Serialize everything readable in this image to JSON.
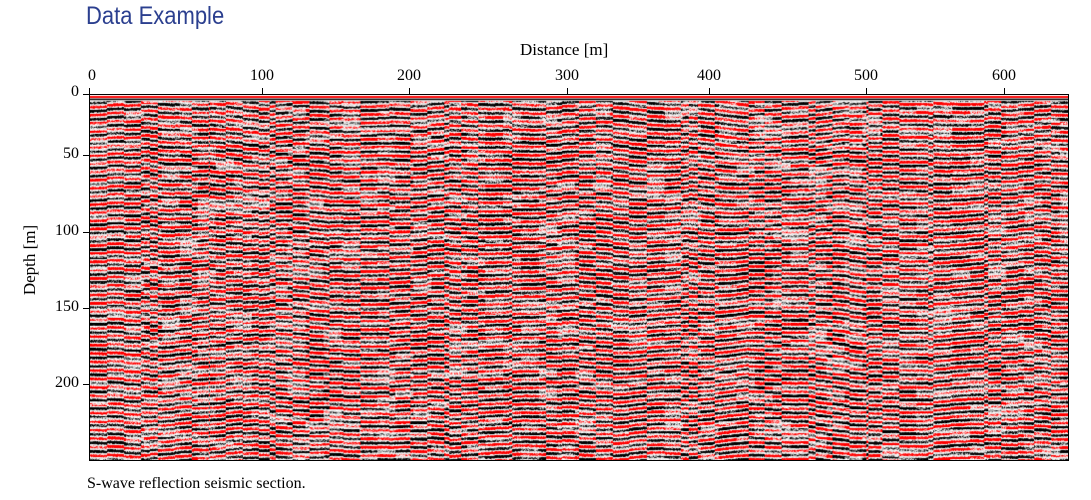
{
  "heading": "Data Example",
  "caption": "S-wave reflection seismic section.",
  "chart_data": {
    "type": "heatmap",
    "title": "",
    "xlabel": "Distance [m]",
    "ylabel": "Depth [m]",
    "xlim": [
      0,
      640
    ],
    "ylim": [
      0,
      245
    ],
    "y_inverted": true,
    "xticks": [
      "0",
      "100",
      "200",
      "300",
      "400",
      "500",
      "600"
    ],
    "yticks": [
      "0",
      "50",
      "100",
      "150",
      "200"
    ],
    "colormap": {
      "negative": "#000000",
      "zero": "#ffffff",
      "positive": "#ff0000"
    },
    "grid": false
  }
}
